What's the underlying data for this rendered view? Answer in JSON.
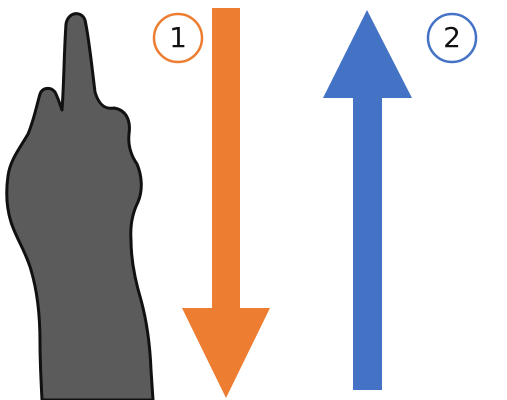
{
  "steps": [
    {
      "number": "1",
      "direction": "down",
      "color": "#ED7D31"
    },
    {
      "number": "2",
      "direction": "up",
      "color": "#4472C4"
    }
  ],
  "hand": {
    "icon": "pointing-hand-icon",
    "fill": "#5b5b5b",
    "outline": "#111111"
  }
}
